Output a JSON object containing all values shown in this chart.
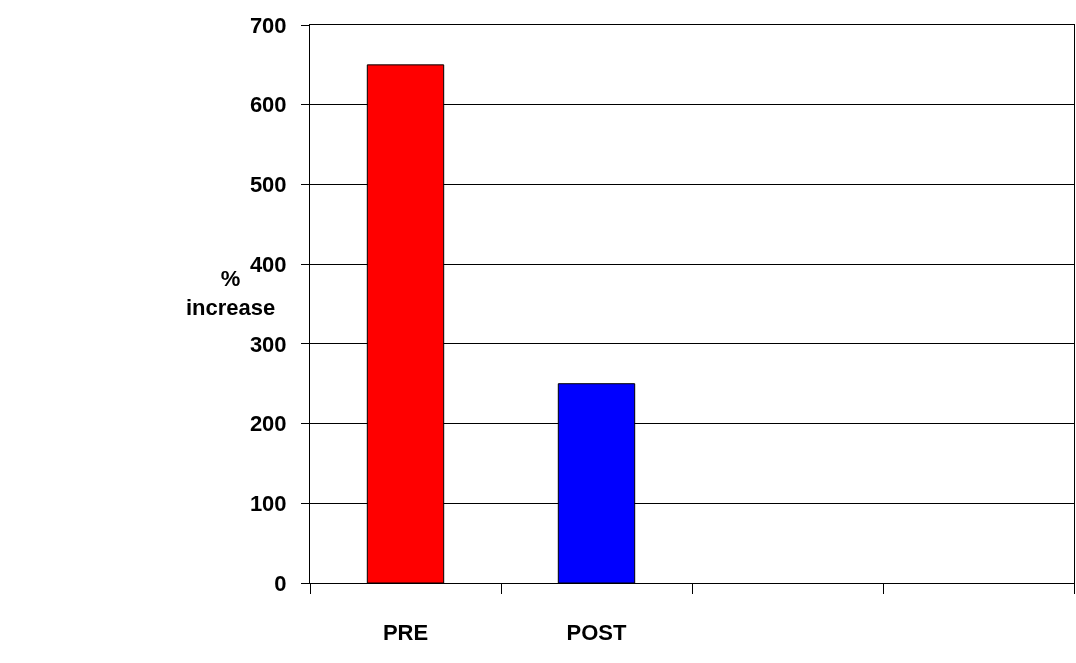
{
  "chart_data": {
    "type": "bar",
    "ylabel": "% increase",
    "categories": [
      "PRE",
      "POST",
      null,
      null
    ],
    "values": [
      650,
      250,
      null,
      null
    ],
    "colors": [
      "#ff0000",
      "#0000ff",
      "#ff0000",
      "#0000ff"
    ],
    "ylim": [
      0,
      700
    ],
    "yticks": [
      0,
      100,
      200,
      300,
      400,
      500,
      600,
      700
    ],
    "grid": "y"
  }
}
